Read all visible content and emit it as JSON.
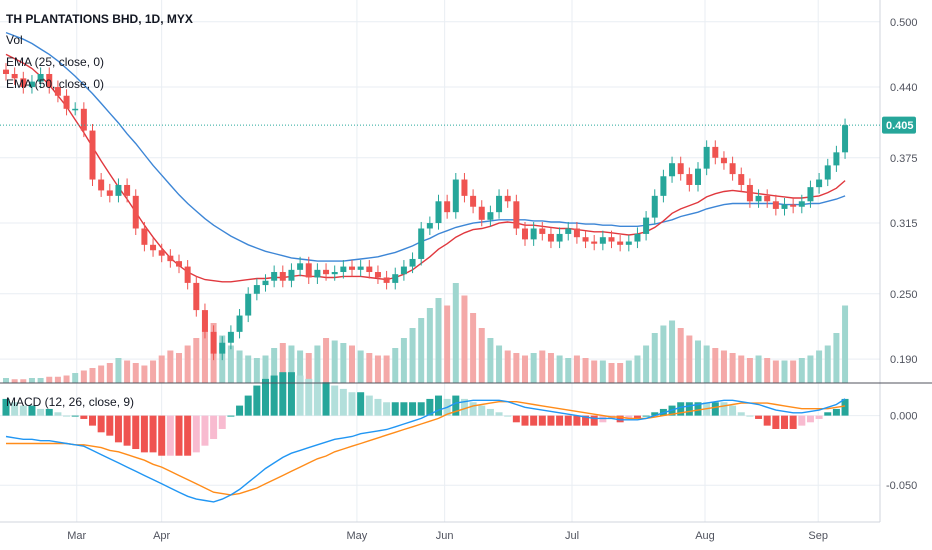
{
  "colors": {
    "up": "#26a69a",
    "down": "#ef5350",
    "vol_up": "#9fd6cf",
    "vol_down": "#f4a9a8",
    "ema25": "#e0383e",
    "ema50": "#3d86d6",
    "macd": "#2196f3",
    "signal": "#ff8c1a",
    "hist_up_strong": "#26a69a",
    "hist_up_weak": "#b2dfdb",
    "hist_down_strong": "#ef5350",
    "hist_down_weak": "#f8bbd0",
    "grid": "#e9eef3",
    "last_price_bg": "#26a69a"
  },
  "legend": {
    "title": "TH PLANTATIONS BHD, 1D, MYX",
    "vol": "Vol",
    "ema25": "EMA (25, close, 0)",
    "ema50": "EMA (50, close, 0)",
    "macd": "MACD (12, 26, close, 9)"
  },
  "last_price_label": "0.405",
  "chart_data": [
    {
      "type": "candlestick",
      "series_names": [
        "EMA (25, close, 0)",
        "EMA (50, close, 0)",
        "Vol"
      ],
      "x_labels": [
        "Mar",
        "Apr",
        "May",
        "Jun",
        "Jul",
        "Aug",
        "Sep"
      ],
      "x_label_days": [
        25,
        55,
        124,
        155,
        200,
        247,
        287
      ],
      "y_ticks": [
        "0.500",
        "0.440",
        "0.375",
        "0.315",
        "0.250",
        "0.190"
      ],
      "y_tick_values": [
        0.5,
        0.44,
        0.375,
        0.315,
        0.25,
        0.19
      ],
      "ylim": [
        0.168,
        0.52
      ],
      "last_price": 0.405,
      "close": [
        0.452,
        0.448,
        0.44,
        0.445,
        0.452,
        0.44,
        0.432,
        0.42,
        0.42,
        0.4,
        0.355,
        0.345,
        0.34,
        0.35,
        0.34,
        0.31,
        0.295,
        0.29,
        0.285,
        0.28,
        0.275,
        0.26,
        0.235,
        0.215,
        0.195,
        0.205,
        0.215,
        0.23,
        0.25,
        0.258,
        0.262,
        0.27,
        0.262,
        0.272,
        0.278,
        0.265,
        0.272,
        0.268,
        0.27,
        0.275,
        0.272,
        0.275,
        0.27,
        0.265,
        0.26,
        0.268,
        0.275,
        0.282,
        0.31,
        0.315,
        0.335,
        0.325,
        0.355,
        0.34,
        0.33,
        0.318,
        0.325,
        0.34,
        0.335,
        0.31,
        0.3,
        0.31,
        0.305,
        0.298,
        0.305,
        0.31,
        0.302,
        0.298,
        0.296,
        0.302,
        0.298,
        0.295,
        0.298,
        0.305,
        0.32,
        0.34,
        0.358,
        0.37,
        0.36,
        0.35,
        0.365,
        0.385,
        0.375,
        0.37,
        0.36,
        0.35,
        0.335,
        0.34,
        0.335,
        0.328,
        0.332,
        0.33,
        0.335,
        0.348,
        0.355,
        0.368,
        0.38,
        0.405
      ],
      "ema25": [
        0.47,
        0.466,
        0.462,
        0.457,
        0.45,
        0.442,
        0.432,
        0.422,
        0.41,
        0.398,
        0.385,
        0.372,
        0.36,
        0.348,
        0.337,
        0.325,
        0.313,
        0.302,
        0.292,
        0.283,
        0.276,
        0.27,
        0.266,
        0.263,
        0.262,
        0.261,
        0.261,
        0.262,
        0.263,
        0.264,
        0.264,
        0.265,
        0.265,
        0.266,
        0.267,
        0.266,
        0.266,
        0.265,
        0.265,
        0.266,
        0.266,
        0.266,
        0.265,
        0.264,
        0.263,
        0.265,
        0.268,
        0.272,
        0.278,
        0.284,
        0.291,
        0.296,
        0.302,
        0.306,
        0.309,
        0.31,
        0.312,
        0.315,
        0.316,
        0.315,
        0.313,
        0.313,
        0.312,
        0.311,
        0.31,
        0.31,
        0.309,
        0.308,
        0.307,
        0.307,
        0.306,
        0.305,
        0.304,
        0.305,
        0.307,
        0.311,
        0.317,
        0.324,
        0.328,
        0.331,
        0.334,
        0.339,
        0.342,
        0.344,
        0.345,
        0.344,
        0.343,
        0.342,
        0.341,
        0.34,
        0.339,
        0.338,
        0.338,
        0.339,
        0.34,
        0.343,
        0.347,
        0.354
      ],
      "ema50": [
        0.49,
        0.487,
        0.484,
        0.48,
        0.475,
        0.47,
        0.464,
        0.457,
        0.45,
        0.442,
        0.434,
        0.425,
        0.416,
        0.407,
        0.397,
        0.388,
        0.378,
        0.368,
        0.359,
        0.35,
        0.341,
        0.333,
        0.326,
        0.319,
        0.313,
        0.308,
        0.303,
        0.299,
        0.295,
        0.292,
        0.289,
        0.287,
        0.285,
        0.283,
        0.282,
        0.281,
        0.28,
        0.28,
        0.28,
        0.28,
        0.281,
        0.282,
        0.283,
        0.284,
        0.286,
        0.288,
        0.291,
        0.294,
        0.298,
        0.301,
        0.305,
        0.308,
        0.311,
        0.313,
        0.315,
        0.316,
        0.317,
        0.318,
        0.318,
        0.318,
        0.318,
        0.317,
        0.317,
        0.316,
        0.316,
        0.315,
        0.315,
        0.314,
        0.314,
        0.313,
        0.313,
        0.312,
        0.312,
        0.312,
        0.313,
        0.314,
        0.316,
        0.318,
        0.321,
        0.323,
        0.325,
        0.328,
        0.33,
        0.332,
        0.333,
        0.333,
        0.333,
        0.333,
        0.333,
        0.333,
        0.332,
        0.332,
        0.332,
        0.333,
        0.333,
        0.335,
        0.337,
        0.34
      ],
      "volume": [
        4,
        3,
        3,
        4,
        4,
        5,
        5,
        6,
        8,
        10,
        12,
        14,
        16,
        20,
        18,
        16,
        14,
        18,
        22,
        26,
        24,
        30,
        36,
        42,
        48,
        38,
        30,
        26,
        22,
        20,
        22,
        28,
        32,
        30,
        26,
        24,
        30,
        36,
        34,
        32,
        30,
        26,
        24,
        22,
        22,
        28,
        36,
        44,
        52,
        60,
        68,
        62,
        80,
        70,
        56,
        44,
        36,
        30,
        26,
        24,
        22,
        24,
        26,
        24,
        22,
        20,
        22,
        20,
        18,
        18,
        16,
        16,
        18,
        22,
        30,
        40,
        46,
        50,
        44,
        38,
        34,
        30,
        28,
        26,
        24,
        22,
        20,
        22,
        20,
        18,
        18,
        18,
        20,
        22,
        26,
        30,
        40,
        62
      ]
    },
    {
      "type": "line",
      "title": "MACD (12, 26, close, 9)",
      "y_ticks": [
        "0.000",
        "-0.050"
      ],
      "y_tick_values": [
        0.0,
        -0.05
      ],
      "ylim": [
        -0.075,
        0.022
      ],
      "series": [
        {
          "name": "MACD",
          "values": [
            -0.015,
            -0.016,
            -0.017,
            -0.017,
            -0.018,
            -0.018,
            -0.019,
            -0.02,
            -0.021,
            -0.022,
            -0.025,
            -0.028,
            -0.031,
            -0.034,
            -0.037,
            -0.04,
            -0.043,
            -0.046,
            -0.049,
            -0.052,
            -0.055,
            -0.058,
            -0.06,
            -0.061,
            -0.062,
            -0.06,
            -0.057,
            -0.053,
            -0.048,
            -0.043,
            -0.038,
            -0.034,
            -0.03,
            -0.027,
            -0.025,
            -0.023,
            -0.021,
            -0.019,
            -0.017,
            -0.016,
            -0.015,
            -0.013,
            -0.012,
            -0.011,
            -0.01,
            -0.008,
            -0.006,
            -0.004,
            -0.002,
            0.001,
            0.004,
            0.006,
            0.009,
            0.01,
            0.011,
            0.011,
            0.011,
            0.011,
            0.01,
            0.008,
            0.006,
            0.005,
            0.004,
            0.003,
            0.002,
            0.001,
            0.0,
            -0.001,
            -0.002,
            -0.002,
            -0.002,
            -0.003,
            -0.003,
            -0.003,
            -0.002,
            0.0,
            0.002,
            0.004,
            0.006,
            0.007,
            0.008,
            0.009,
            0.01,
            0.011,
            0.011,
            0.01,
            0.009,
            0.008,
            0.006,
            0.004,
            0.003,
            0.002,
            0.002,
            0.003,
            0.004,
            0.006,
            0.008,
            0.012
          ]
        },
        {
          "name": "Signal",
          "values": [
            -0.02,
            -0.02,
            -0.02,
            -0.02,
            -0.02,
            -0.02,
            -0.02,
            -0.02,
            -0.021,
            -0.021,
            -0.022,
            -0.023,
            -0.025,
            -0.026,
            -0.028,
            -0.03,
            -0.032,
            -0.035,
            -0.037,
            -0.04,
            -0.043,
            -0.046,
            -0.049,
            -0.052,
            -0.055,
            -0.056,
            -0.057,
            -0.056,
            -0.054,
            -0.052,
            -0.049,
            -0.046,
            -0.043,
            -0.04,
            -0.037,
            -0.034,
            -0.031,
            -0.029,
            -0.026,
            -0.024,
            -0.022,
            -0.02,
            -0.018,
            -0.016,
            -0.014,
            -0.012,
            -0.01,
            -0.008,
            -0.006,
            -0.004,
            -0.002,
            0.001,
            0.003,
            0.005,
            0.007,
            0.008,
            0.009,
            0.01,
            0.01,
            0.01,
            0.009,
            0.008,
            0.007,
            0.006,
            0.005,
            0.004,
            0.003,
            0.002,
            0.001,
            0.0,
            -0.001,
            -0.001,
            -0.002,
            -0.002,
            -0.002,
            -0.001,
            0.0,
            0.001,
            0.002,
            0.003,
            0.004,
            0.005,
            0.006,
            0.007,
            0.008,
            0.009,
            0.009,
            0.009,
            0.009,
            0.008,
            0.007,
            0.006,
            0.005,
            0.005,
            0.005,
            0.005,
            0.006,
            0.007
          ]
        }
      ]
    }
  ]
}
